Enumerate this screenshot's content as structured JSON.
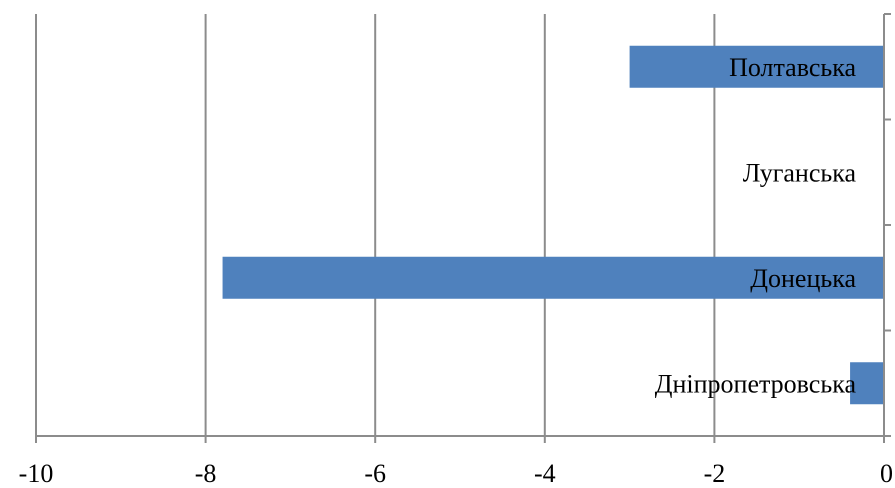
{
  "chart_data": {
    "type": "bar",
    "orientation": "horizontal",
    "title": "",
    "xlabel": "",
    "ylabel": "",
    "categories": [
      "Полтавська",
      "Луганська",
      "Донецька",
      "Дніпропетровська"
    ],
    "values": [
      -3.0,
      0,
      -7.8,
      -0.4
    ],
    "xlim": [
      -10,
      0
    ],
    "xticks": [
      -10,
      -8,
      -6,
      -4,
      -2,
      0
    ],
    "xtick_labels": [
      "-10",
      "-8",
      "-6",
      "-4",
      "-2",
      "0"
    ],
    "grid": "vertical",
    "legend": "none",
    "bar_color": "#4f81bd"
  }
}
